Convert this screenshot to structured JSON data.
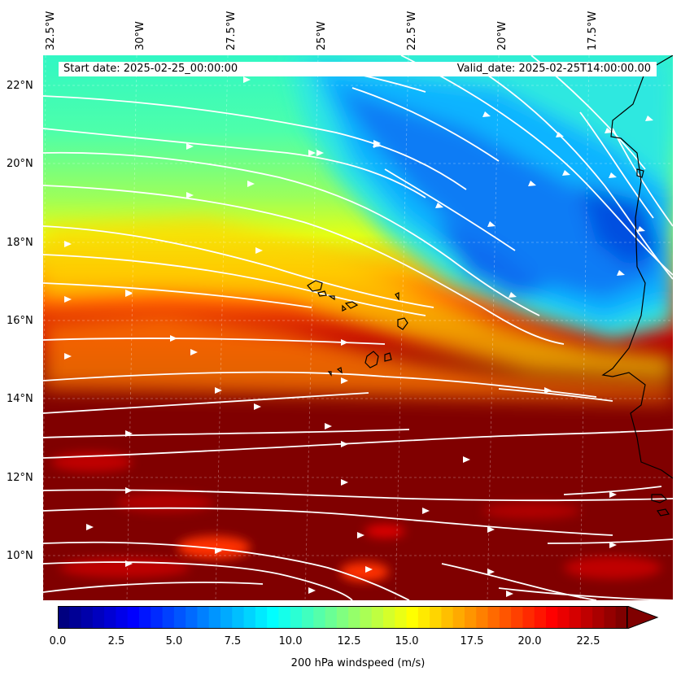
{
  "header": {
    "start_date": "Start date: 2025-02-25_00:00:00",
    "valid_date": "Valid_date: 2025-02-25T14:00:00.00"
  },
  "lon_labels": [
    "32.5°W",
    "30°W",
    "27.5°W",
    "25°W",
    "22.5°W",
    "20°W",
    "17.5°W"
  ],
  "lat_labels": [
    "22°N",
    "20°N",
    "18°N",
    "16°N",
    "14°N",
    "12°N",
    "10°N"
  ],
  "colorbar": {
    "ticks": [
      "0.0",
      "2.5",
      "5.0",
      "7.5",
      "10.0",
      "12.5",
      "15.0",
      "17.5",
      "20.0",
      "22.5"
    ],
    "label": "200 hPa windspeed (m/s)",
    "min": 0,
    "max": 25,
    "colormap": "jet",
    "extend": "max"
  },
  "colors": {
    "land_outline": "#000000",
    "streamline": "#ffffff"
  }
}
